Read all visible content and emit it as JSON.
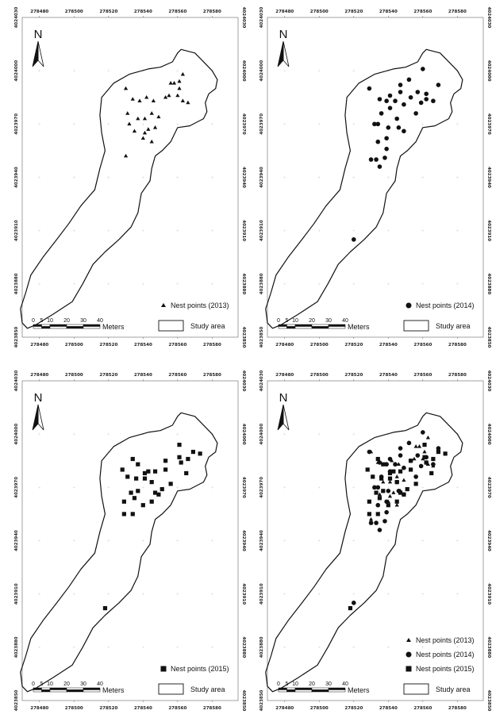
{
  "axis": {
    "x_ticks": [
      "278480",
      "278500",
      "278520",
      "278540",
      "278560",
      "278580"
    ],
    "y_ticks": [
      "4024030",
      "4024000",
      "4023970",
      "4023940",
      "4023910",
      "4023880",
      "4023850"
    ]
  },
  "north_label": "N",
  "scalebar": {
    "ticks": [
      "0",
      "5",
      "10",
      "20",
      "30",
      "40"
    ],
    "unit": "Meters"
  },
  "study_area_label": "Study area",
  "panels": [
    {
      "id": "p2013",
      "legend": [
        {
          "label": "Nest points (2013)",
          "symbol": "triangle"
        }
      ],
      "points": [
        {
          "year": 2013,
          "symbol": "triangle",
          "xy": [
            [
              278530,
              4023990
            ],
            [
              278534,
              4023984
            ],
            [
              278538,
              4023983
            ],
            [
              278542,
              4023985
            ],
            [
              278546,
              4023983
            ],
            [
              278553,
              4023985
            ],
            [
              278531,
              4023976
            ],
            [
              278532,
              4023970
            ],
            [
              278537,
              4023973
            ],
            [
              278541,
              4023973
            ],
            [
              278545,
              4023976
            ],
            [
              278549,
              4023974
            ],
            [
              278535,
              4023966
            ],
            [
              278541,
              4023965
            ],
            [
              278543,
              4023967
            ],
            [
              278547,
              4023968
            ],
            [
              278540,
              4023962
            ],
            [
              278545,
              4023960
            ],
            [
              278530,
              4023952
            ],
            [
              278555,
              4023986
            ],
            [
              278560,
              4023986
            ],
            [
              278563,
              4023983
            ],
            [
              278566,
              4023982
            ],
            [
              278561,
              4023990
            ],
            [
              278556,
              4023993
            ],
            [
              278558,
              4023993
            ],
            [
              278561,
              4023994
            ],
            [
              278563,
              4023998
            ]
          ]
        }
      ]
    },
    {
      "id": "p2014",
      "legend": [
        {
          "label": "Nest points (2014)",
          "symbol": "circle"
        }
      ],
      "points": [
        {
          "year": 2014,
          "symbol": "circle",
          "xy": [
            [
              278560,
              4024001
            ],
            [
              278552,
              4023995
            ],
            [
              278547,
              4023992
            ],
            [
              278569,
              4023992
            ],
            [
              278529,
              4023990
            ],
            [
              278557,
              4023988
            ],
            [
              278562,
              4023987
            ],
            [
              278541,
              4023986
            ],
            [
              278547,
              4023988
            ],
            [
              278553,
              4023985
            ],
            [
              278535,
              4023984
            ],
            [
              278539,
              4023983
            ],
            [
              278544,
              4023983
            ],
            [
              278549,
              4023981
            ],
            [
              278562,
              4023984
            ],
            [
              278566,
              4023983
            ],
            [
              278559,
              4023982
            ],
            [
              278541,
              4023979
            ],
            [
              278536,
              4023976
            ],
            [
              278556,
              4023976
            ],
            [
              278545,
              4023973
            ],
            [
              278532,
              4023970
            ],
            [
              278534,
              4023970
            ],
            [
              278546,
              4023968
            ],
            [
              278549,
              4023966
            ],
            [
              278540,
              4023968
            ],
            [
              278539,
              4023962
            ],
            [
              278534,
              4023960
            ],
            [
              278539,
              4023956
            ],
            [
              278530,
              4023950
            ],
            [
              278533,
              4023950
            ],
            [
              278538,
              4023951
            ],
            [
              278535,
              4023946
            ],
            [
              278520,
              4023905
            ]
          ]
        }
      ]
    },
    {
      "id": "p2015",
      "legend": [
        {
          "label": "Nest points (2015)",
          "symbol": "square"
        }
      ],
      "points": [
        {
          "year": 2015,
          "symbol": "square",
          "xy": [
            [
              278561,
              4023994
            ],
            [
              278569,
              4023990
            ],
            [
              278573,
              4023989
            ],
            [
              278561,
              4023987
            ],
            [
              278553,
              4023985
            ],
            [
              278562,
              4023984
            ],
            [
              278566,
              4023986
            ],
            [
              278534,
              4023986
            ],
            [
              278537,
              4023983
            ],
            [
              278528,
              4023980
            ],
            [
              278541,
              4023978
            ],
            [
              278543,
              4023979
            ],
            [
              278547,
              4023979
            ],
            [
              278553,
              4023980
            ],
            [
              278565,
              4023978
            ],
            [
              278531,
              4023976
            ],
            [
              278536,
              4023975
            ],
            [
              278541,
              4023975
            ],
            [
              278545,
              4023973
            ],
            [
              278556,
              4023972
            ],
            [
              278537,
              4023968
            ],
            [
              278547,
              4023967
            ],
            [
              278551,
              4023969
            ],
            [
              278533,
              4023967
            ],
            [
              278545,
              4023962
            ],
            [
              278529,
              4023962
            ],
            [
              278535,
              4023964
            ],
            [
              278549,
              4023966
            ],
            [
              278540,
              4023960
            ],
            [
              278529,
              4023955
            ],
            [
              278534,
              4023955
            ],
            [
              278518,
              4023902
            ]
          ]
        }
      ]
    },
    {
      "id": "pall",
      "legend": [
        {
          "label": "Nest points (2013)",
          "symbol": "triangle"
        },
        {
          "label": "Nest points (2014)",
          "symbol": "circle"
        },
        {
          "label": "Nest points (2015)",
          "symbol": "square"
        }
      ],
      "points": [
        {
          "year": 2013,
          "symbol": "triangle",
          "xy": [
            [
              278530,
              4023990
            ],
            [
              278534,
              4023984
            ],
            [
              278538,
              4023983
            ],
            [
              278542,
              4023985
            ],
            [
              278546,
              4023983
            ],
            [
              278553,
              4023985
            ],
            [
              278531,
              4023976
            ],
            [
              278532,
              4023970
            ],
            [
              278537,
              4023973
            ],
            [
              278541,
              4023973
            ],
            [
              278545,
              4023976
            ],
            [
              278549,
              4023974
            ],
            [
              278535,
              4023966
            ],
            [
              278541,
              4023965
            ],
            [
              278543,
              4023967
            ],
            [
              278547,
              4023968
            ],
            [
              278540,
              4023962
            ],
            [
              278545,
              4023960
            ],
            [
              278530,
              4023952
            ],
            [
              278555,
              4023986
            ],
            [
              278560,
              4023986
            ],
            [
              278563,
              4023983
            ],
            [
              278566,
              4023982
            ],
            [
              278561,
              4023990
            ],
            [
              278556,
              4023993
            ],
            [
              278558,
              4023993
            ],
            [
              278561,
              4023994
            ],
            [
              278563,
              4023998
            ]
          ]
        },
        {
          "year": 2014,
          "symbol": "circle",
          "xy": [
            [
              278560,
              4024001
            ],
            [
              278552,
              4023995
            ],
            [
              278547,
              4023992
            ],
            [
              278569,
              4023992
            ],
            [
              278529,
              4023990
            ],
            [
              278557,
              4023988
            ],
            [
              278562,
              4023987
            ],
            [
              278541,
              4023986
            ],
            [
              278547,
              4023988
            ],
            [
              278553,
              4023985
            ],
            [
              278535,
              4023984
            ],
            [
              278539,
              4023983
            ],
            [
              278544,
              4023983
            ],
            [
              278549,
              4023981
            ],
            [
              278562,
              4023984
            ],
            [
              278566,
              4023983
            ],
            [
              278559,
              4023982
            ],
            [
              278541,
              4023979
            ],
            [
              278536,
              4023976
            ],
            [
              278556,
              4023976
            ],
            [
              278545,
              4023973
            ],
            [
              278532,
              4023970
            ],
            [
              278534,
              4023970
            ],
            [
              278546,
              4023968
            ],
            [
              278549,
              4023966
            ],
            [
              278540,
              4023968
            ],
            [
              278539,
              4023962
            ],
            [
              278534,
              4023960
            ],
            [
              278539,
              4023956
            ],
            [
              278530,
              4023950
            ],
            [
              278533,
              4023950
            ],
            [
              278538,
              4023951
            ],
            [
              278535,
              4023946
            ],
            [
              278520,
              4023905
            ]
          ]
        },
        {
          "year": 2015,
          "symbol": "square",
          "xy": [
            [
              278561,
              4023994
            ],
            [
              278569,
              4023990
            ],
            [
              278573,
              4023989
            ],
            [
              278561,
              4023987
            ],
            [
              278553,
              4023985
            ],
            [
              278562,
              4023984
            ],
            [
              278566,
              4023986
            ],
            [
              278534,
              4023986
            ],
            [
              278537,
              4023983
            ],
            [
              278528,
              4023980
            ],
            [
              278541,
              4023978
            ],
            [
              278543,
              4023979
            ],
            [
              278547,
              4023979
            ],
            [
              278553,
              4023980
            ],
            [
              278565,
              4023978
            ],
            [
              278531,
              4023976
            ],
            [
              278536,
              4023975
            ],
            [
              278541,
              4023975
            ],
            [
              278545,
              4023973
            ],
            [
              278556,
              4023972
            ],
            [
              278537,
              4023968
            ],
            [
              278547,
              4023967
            ],
            [
              278551,
              4023969
            ],
            [
              278533,
              4023967
            ],
            [
              278545,
              4023962
            ],
            [
              278529,
              4023962
            ],
            [
              278535,
              4023964
            ],
            [
              278549,
              4023966
            ],
            [
              278540,
              4023960
            ],
            [
              278529,
              4023955
            ],
            [
              278534,
              4023955
            ],
            [
              278518,
              4023902
            ]
          ]
        }
      ]
    }
  ],
  "study_area_boundary": [
    [
      278562,
      4024012
    ],
    [
      278570,
      4024010
    ],
    [
      278576,
      4024004
    ],
    [
      278580,
      4024000
    ],
    [
      278583,
      4023995
    ],
    [
      278582,
      4023990
    ],
    [
      278578,
      4023987
    ],
    [
      278576,
      4023982
    ],
    [
      278577,
      4023977
    ],
    [
      278575,
      4023973
    ],
    [
      278567,
      4023969
    ],
    [
      278560,
      4023968
    ],
    [
      278556,
      4023960
    ],
    [
      278551,
      4023955
    ],
    [
      278547,
      4023952
    ],
    [
      278545,
      4023945
    ],
    [
      278544,
      4023938
    ],
    [
      278539,
      4023931
    ],
    [
      278537,
      4023920
    ],
    [
      278533,
      4023912
    ],
    [
      278526,
      4023905
    ],
    [
      278518,
      4023898
    ],
    [
      278511,
      4023891
    ],
    [
      278505,
      4023880
    ],
    [
      278499,
      4023870
    ],
    [
      278488,
      4023863
    ],
    [
      278478,
      4023857
    ],
    [
      278473,
      4023855
    ],
    [
      278470,
      4023858
    ],
    [
      278469,
      4023866
    ],
    [
      278472,
      4023875
    ],
    [
      278475,
      4023885
    ],
    [
      278482,
      4023895
    ],
    [
      278490,
      4023905
    ],
    [
      278497,
      4023914
    ],
    [
      278504,
      4023924
    ],
    [
      278512,
      4023933
    ],
    [
      278515,
      4023945
    ],
    [
      278518,
      4023955
    ],
    [
      278516,
      4023965
    ],
    [
      278515,
      4023975
    ],
    [
      278516,
      4023985
    ],
    [
      278523,
      4023993
    ],
    [
      278532,
      4023998
    ],
    [
      278543,
      4024001
    ],
    [
      278550,
      4024002
    ],
    [
      278557,
      4024005
    ],
    [
      278560,
      4024010
    ]
  ]
}
